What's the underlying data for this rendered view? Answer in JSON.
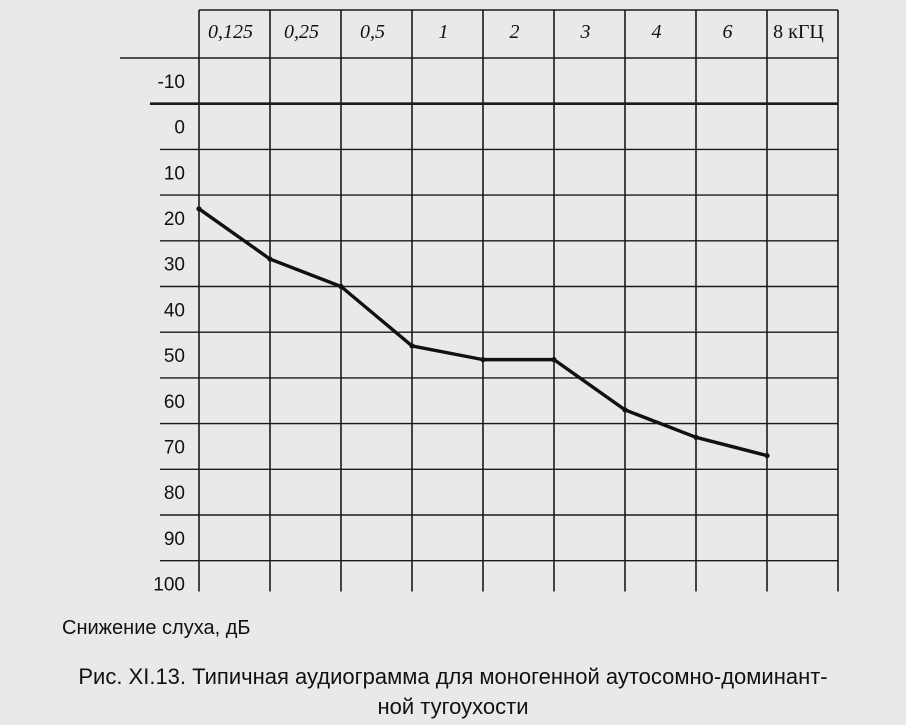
{
  "chart_data": {
    "type": "line",
    "x_tick_labels": [
      "0,125",
      "0,25",
      "0,5",
      "1",
      "2",
      "3",
      "4",
      "6",
      "8 кГЦ"
    ],
    "y_tick_labels": [
      "-10",
      "0",
      "10",
      "20",
      "30",
      "40",
      "50",
      "60",
      "70",
      "80",
      "90",
      "100"
    ],
    "ylabel": "Снижение слуха, дБ",
    "ylim": [
      -10,
      100
    ],
    "y_inverted": true,
    "zero_line_bold": true,
    "grid": true,
    "series": [
      {
        "x": [
          "0,125",
          "0,25",
          "0,5",
          "1",
          "2",
          "3",
          "4",
          "6",
          "8 кГЦ"
        ],
        "values": [
          23,
          34,
          40,
          53,
          56,
          56,
          67,
          73,
          77
        ]
      }
    ]
  },
  "caption": {
    "line1": "Рис. XI.13. Типичная аудиограмма для моногенной аутосомно-доминант-",
    "line2": "ной тугоухости"
  }
}
